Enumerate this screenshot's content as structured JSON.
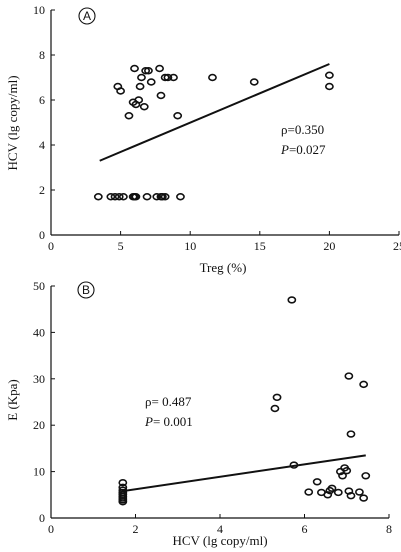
{
  "chart_data": [
    {
      "type": "scatter",
      "panel_label": "A",
      "title": "",
      "xlabel": "Treg (%)",
      "ylabel": "HCV (lg copy/ml)",
      "xlim": [
        0,
        25
      ],
      "ylim": [
        0,
        10
      ],
      "xticks": [
        0,
        5,
        10,
        15,
        20,
        25
      ],
      "yticks": [
        0,
        2,
        4,
        6,
        8,
        10
      ],
      "annotation": {
        "rho": "ρ=0.350",
        "p_italic": "P",
        "p_value": "=0.027"
      },
      "regression": {
        "x": [
          3.5,
          20
        ],
        "y": [
          3.3,
          7.6
        ]
      },
      "points": [
        {
          "x": 4.8,
          "y": 6.6
        },
        {
          "x": 5.0,
          "y": 6.4
        },
        {
          "x": 5.6,
          "y": 5.3
        },
        {
          "x": 5.9,
          "y": 5.9
        },
        {
          "x": 6.0,
          "y": 7.4
        },
        {
          "x": 6.1,
          "y": 5.8
        },
        {
          "x": 6.3,
          "y": 6.0
        },
        {
          "x": 6.4,
          "y": 6.6
        },
        {
          "x": 6.5,
          "y": 7.0
        },
        {
          "x": 6.7,
          "y": 5.7
        },
        {
          "x": 6.8,
          "y": 7.3
        },
        {
          "x": 7.0,
          "y": 7.3
        },
        {
          "x": 7.2,
          "y": 6.8
        },
        {
          "x": 7.8,
          "y": 7.4
        },
        {
          "x": 7.9,
          "y": 6.2
        },
        {
          "x": 8.2,
          "y": 7.0
        },
        {
          "x": 8.4,
          "y": 7.0
        },
        {
          "x": 8.8,
          "y": 7.0
        },
        {
          "x": 9.1,
          "y": 5.3
        },
        {
          "x": 11.6,
          "y": 7.0
        },
        {
          "x": 14.6,
          "y": 6.8
        },
        {
          "x": 20.0,
          "y": 7.1
        },
        {
          "x": 20.0,
          "y": 6.6
        },
        {
          "x": 3.4,
          "y": 1.7
        },
        {
          "x": 4.3,
          "y": 1.7
        },
        {
          "x": 4.6,
          "y": 1.7
        },
        {
          "x": 4.9,
          "y": 1.7
        },
        {
          "x": 5.2,
          "y": 1.7
        },
        {
          "x": 5.9,
          "y": 1.7
        },
        {
          "x": 6.0,
          "y": 1.7
        },
        {
          "x": 6.1,
          "y": 1.7
        },
        {
          "x": 6.9,
          "y": 1.7
        },
        {
          "x": 7.6,
          "y": 1.7
        },
        {
          "x": 7.9,
          "y": 1.7
        },
        {
          "x": 8.0,
          "y": 1.7
        },
        {
          "x": 8.2,
          "y": 1.7
        },
        {
          "x": 9.3,
          "y": 1.7
        }
      ]
    },
    {
      "type": "scatter",
      "panel_label": "B",
      "title": "",
      "xlabel": "HCV (lg copy/ml)",
      "ylabel": "E (Kpa)",
      "xlim": [
        0,
        8
      ],
      "ylim": [
        0,
        50
      ],
      "xticks": [
        0,
        2,
        4,
        6,
        8
      ],
      "yticks": [
        0,
        10,
        20,
        30,
        40,
        50
      ],
      "annotation": {
        "rho": "ρ= 0.487",
        "p_italic": "P",
        "p_value": "= 0.001"
      },
      "regression": {
        "x": [
          1.7,
          7.45
        ],
        "y": [
          5.8,
          13.5
        ]
      },
      "points": [
        {
          "x": 1.7,
          "y": 7.6
        },
        {
          "x": 1.7,
          "y": 6.6
        },
        {
          "x": 1.7,
          "y": 6.0
        },
        {
          "x": 1.7,
          "y": 5.5
        },
        {
          "x": 1.7,
          "y": 5.1
        },
        {
          "x": 1.7,
          "y": 4.7
        },
        {
          "x": 1.7,
          "y": 4.3
        },
        {
          "x": 1.7,
          "y": 3.9
        },
        {
          "x": 1.7,
          "y": 3.5
        },
        {
          "x": 5.3,
          "y": 23.6
        },
        {
          "x": 5.35,
          "y": 26.0
        },
        {
          "x": 5.7,
          "y": 47.0
        },
        {
          "x": 5.75,
          "y": 11.4
        },
        {
          "x": 6.1,
          "y": 5.6
        },
        {
          "x": 6.3,
          "y": 7.8
        },
        {
          "x": 6.4,
          "y": 5.5
        },
        {
          "x": 6.55,
          "y": 5.0
        },
        {
          "x": 6.6,
          "y": 5.9
        },
        {
          "x": 6.65,
          "y": 6.4
        },
        {
          "x": 6.8,
          "y": 5.5
        },
        {
          "x": 6.85,
          "y": 10.0
        },
        {
          "x": 6.9,
          "y": 9.1
        },
        {
          "x": 6.95,
          "y": 10.8
        },
        {
          "x": 7.0,
          "y": 10.2
        },
        {
          "x": 7.05,
          "y": 30.6
        },
        {
          "x": 7.1,
          "y": 18.1
        },
        {
          "x": 7.05,
          "y": 5.8
        },
        {
          "x": 7.1,
          "y": 4.8
        },
        {
          "x": 7.3,
          "y": 5.6
        },
        {
          "x": 7.4,
          "y": 28.8
        },
        {
          "x": 7.45,
          "y": 9.1
        },
        {
          "x": 7.4,
          "y": 4.3
        }
      ]
    }
  ]
}
